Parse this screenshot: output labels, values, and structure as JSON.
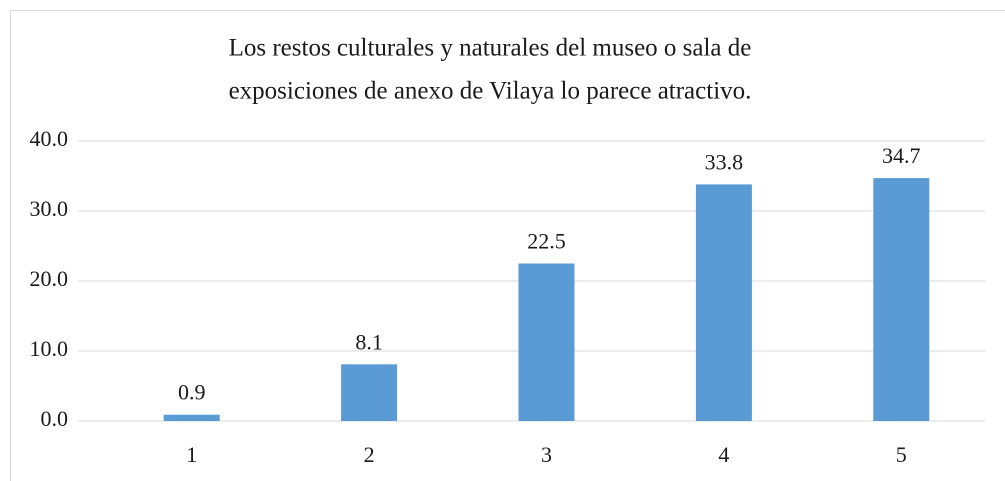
{
  "chart_data": {
    "type": "bar",
    "title": [
      "Los restos culturales y naturales del  museo o sala de",
      "exposiciones de anexo de  Vilaya lo parece atractivo."
    ],
    "categories": [
      "1",
      "2",
      "3",
      "4",
      "5"
    ],
    "values": [
      0.9,
      8.1,
      22.5,
      33.8,
      34.7
    ],
    "color": "#5b9bd5",
    "ylim": [
      0,
      40
    ],
    "yticks": [
      {
        "value": 0,
        "label": "0.0"
      },
      {
        "value": 10,
        "label": "10.0"
      },
      {
        "value": 20,
        "label": "20.0"
      },
      {
        "value": 30,
        "label": "30.0"
      },
      {
        "value": 40,
        "label": "40.0"
      }
    ],
    "grid": true
  }
}
